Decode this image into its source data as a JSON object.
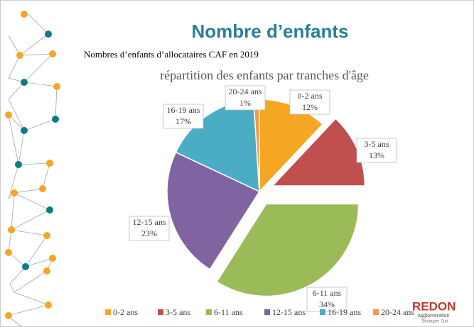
{
  "slide": {
    "title": "Nombre d’enfants",
    "subtitle": "Nombres d’enfants d’allocataires CAF en 2019",
    "logo": {
      "name": "REDON",
      "line1": "agglomération",
      "line2": "Bretagne Sud"
    }
  },
  "chart_data": {
    "type": "pie",
    "title": "répartition des enfants par tranches d'âge",
    "categories": [
      "0-2 ans",
      "3-5 ans",
      "6-11 ans",
      "12-15 ans",
      "16-19 ans",
      "20-24 ans"
    ],
    "values": [
      12,
      13,
      34,
      23,
      17,
      1
    ],
    "value_labels": [
      "12%",
      "13%",
      "34%",
      "23%",
      "17%",
      "1%"
    ],
    "colors": [
      "#f5a623",
      "#c0504d",
      "#9bbb59",
      "#8064a2",
      "#4bacc6",
      "#f79646"
    ],
    "exploded": [
      false,
      true,
      true,
      false,
      false,
      false
    ],
    "legend": "bottom"
  }
}
